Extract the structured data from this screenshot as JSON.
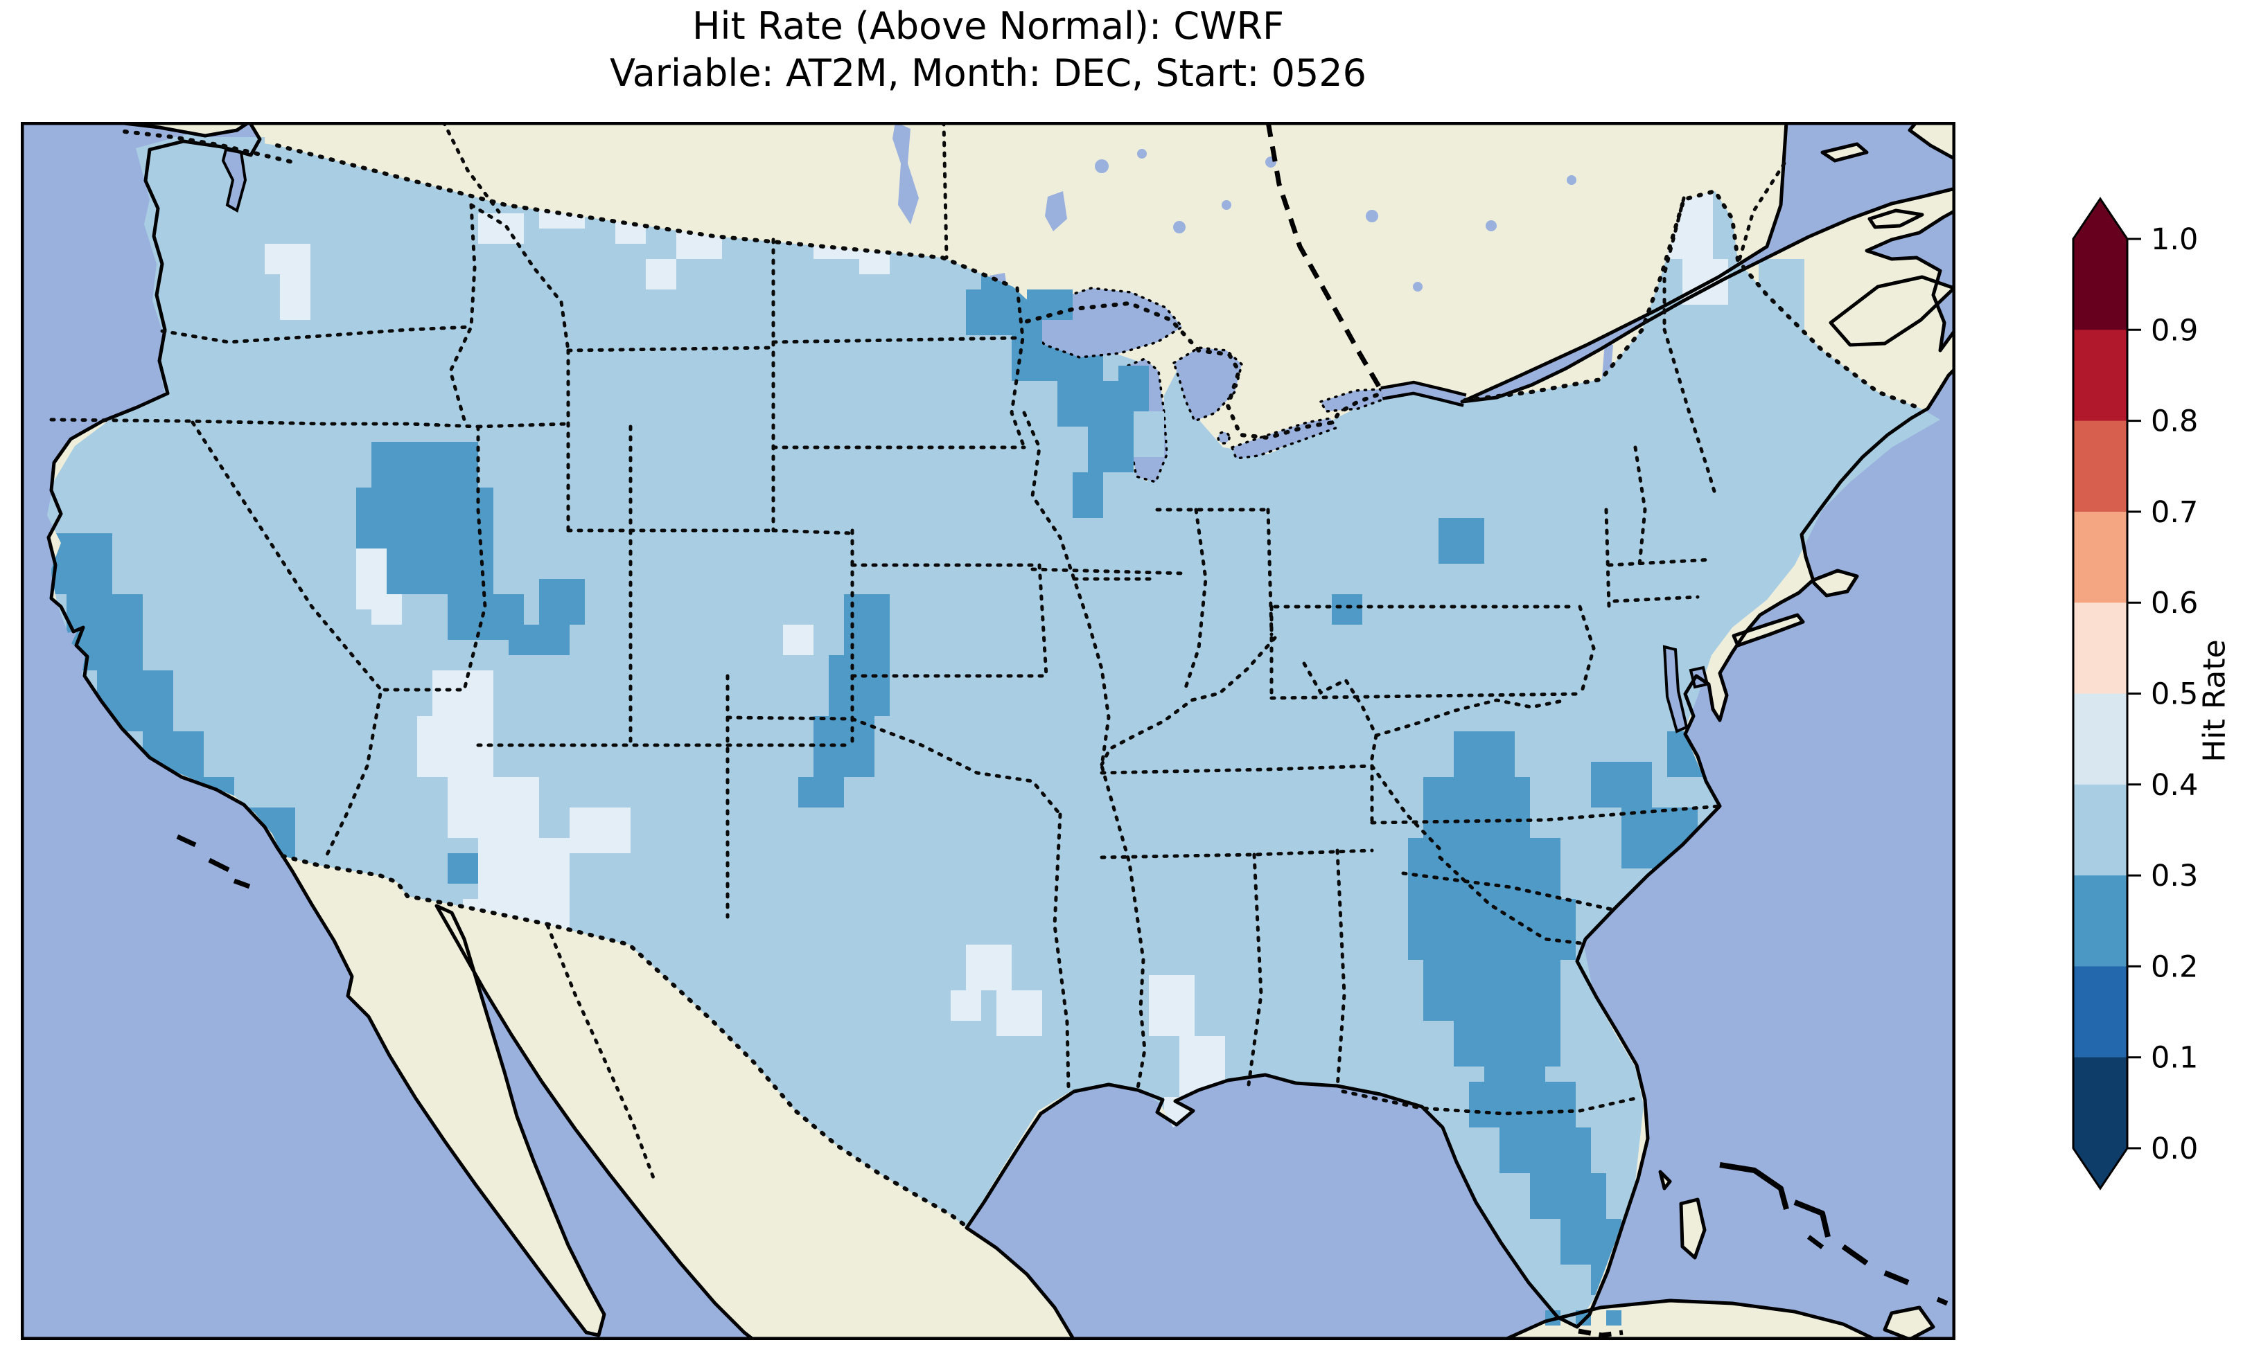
{
  "title": {
    "line1": "Hit Rate (Above Normal): CWRF",
    "line2": "Variable: AT2M, Month: DEC, Start: 0526"
  },
  "colorbar": {
    "label": "Hit Rate",
    "ticks": [
      "1.0",
      "0.9",
      "0.8",
      "0.7",
      "0.6",
      "0.5",
      "0.4",
      "0.3",
      "0.2",
      "0.1",
      "0.0"
    ],
    "segments": [
      {
        "range": "0.9-1.0",
        "color": "#67001f"
      },
      {
        "range": "0.8-0.9",
        "color": "#b2182b"
      },
      {
        "range": "0.7-0.8",
        "color": "#d6604d"
      },
      {
        "range": "0.6-0.7",
        "color": "#f4a582"
      },
      {
        "range": "0.5-0.6",
        "color": "#fbdfd0"
      },
      {
        "range": "0.4-0.5",
        "color": "#d9e7f1"
      },
      {
        "range": "0.3-0.4",
        "color": "#a9cee3"
      },
      {
        "range": "0.2-0.3",
        "color": "#4c98c5"
      },
      {
        "range": "0.1-0.2",
        "color": "#2368ac"
      },
      {
        "range": "0.0-0.1",
        "color": "#0e3d6a"
      }
    ],
    "extend_above_color": "#67001f",
    "extend_below_color": "#0e3d6a"
  },
  "map": {
    "colors": {
      "ocean": "#9ab1de",
      "land": "#efeedb",
      "lake": "#9ab1de",
      "coastline": "#000000",
      "border": "#0a0a0a",
      "frame": "#000000"
    },
    "bins": {
      "b2": {
        "range": "0.2-0.3",
        "color": "#4f9ac6"
      },
      "b3": {
        "range": "0.3-0.4",
        "color": "#a9cee3"
      },
      "b4": {
        "range": "0.4-0.5",
        "color": "#e3eef6"
      }
    },
    "base_bin": "b3",
    "cell_size": 22,
    "patches": [
      {
        "bin": "b2",
        "region": "northern-minnesota",
        "rects": [
          [
            63,
            9,
            6,
            2
          ],
          [
            62,
            11,
            8,
            3
          ],
          [
            65,
            14,
            6,
            3
          ],
          [
            68,
            17,
            4,
            3
          ],
          [
            70,
            20,
            3,
            3
          ]
        ]
      },
      {
        "bin": "b2",
        "region": "west-lake-superior",
        "overlay": true,
        "rects": [
          [
            66,
            11,
            3,
            2
          ],
          [
            65,
            13,
            2,
            2
          ]
        ]
      },
      {
        "bin": "b2",
        "region": "west-lake-michigan",
        "overlay": true,
        "rects": [
          [
            72,
            16,
            2,
            3
          ],
          [
            71,
            19,
            2,
            4
          ]
        ]
      },
      {
        "bin": "b3",
        "region": "lake-michigan-east",
        "overlay": true,
        "rects": [
          [
            73,
            19,
            2,
            3
          ]
        ]
      },
      {
        "bin": "b2",
        "region": "wisconsin-shore",
        "rects": [
          [
            69,
            23,
            2,
            3
          ]
        ]
      },
      {
        "bin": "b2",
        "region": "california-coast",
        "rects": [
          [
            2,
            27,
            4,
            4
          ],
          [
            3,
            31,
            5,
            5
          ],
          [
            5,
            36,
            5,
            4
          ],
          [
            8,
            40,
            4,
            3
          ],
          [
            11,
            43,
            3,
            2
          ]
        ]
      },
      {
        "bin": "b2",
        "region": "southern-california",
        "rects": [
          [
            14,
            45,
            4,
            2
          ],
          [
            16,
            47,
            2,
            2
          ]
        ]
      },
      {
        "bin": "b2",
        "region": "northern-nevada",
        "rects": [
          [
            23,
            21,
            7,
            3
          ],
          [
            22,
            24,
            9,
            4
          ],
          [
            24,
            28,
            7,
            3
          ],
          [
            28,
            31,
            5,
            3
          ],
          [
            32,
            33,
            4,
            2
          ],
          [
            34,
            30,
            3,
            3
          ]
        ]
      },
      {
        "bin": "b2",
        "region": "central-kansas",
        "rects": [
          [
            54,
            31,
            3,
            4
          ],
          [
            53,
            35,
            4,
            4
          ],
          [
            52,
            39,
            4,
            4
          ],
          [
            51,
            43,
            3,
            2
          ]
        ]
      },
      {
        "bin": "b2",
        "region": "west-virginia",
        "rects": [
          [
            86,
            31,
            2,
            2
          ]
        ]
      },
      {
        "bin": "b2",
        "region": "central-pennsylvania",
        "rects": [
          [
            93,
            26,
            3,
            3
          ]
        ]
      },
      {
        "bin": "b2",
        "region": "southeast-georgia-carolinas",
        "rects": [
          [
            94,
            40,
            4,
            3
          ],
          [
            92,
            43,
            7,
            4
          ],
          [
            91,
            47,
            10,
            4
          ],
          [
            91,
            51,
            11,
            4
          ],
          [
            92,
            55,
            9,
            4
          ],
          [
            94,
            59,
            7,
            3
          ],
          [
            96,
            62,
            4,
            2
          ],
          [
            103,
            42,
            4,
            3
          ],
          [
            105,
            45,
            5,
            4
          ],
          [
            107,
            49,
            4,
            4
          ],
          [
            108,
            40,
            3,
            3
          ]
        ]
      },
      {
        "bin": "b2",
        "region": "north-carolina-coast",
        "rects": [
          [
            110,
            47,
            3,
            3
          ]
        ]
      },
      {
        "bin": "b2",
        "region": "florida-peninsula",
        "rects": [
          [
            95,
            63,
            7,
            3
          ],
          [
            97,
            66,
            6,
            3
          ],
          [
            99,
            69,
            5,
            3
          ],
          [
            101,
            72,
            4,
            3
          ],
          [
            103,
            75,
            3,
            2
          ]
        ]
      },
      {
        "bin": "b2",
        "region": "louisiana-delta",
        "rects": [
          [
            73,
            65,
            3,
            3
          ],
          [
            71,
            68,
            2,
            2
          ]
        ]
      },
      {
        "bin": "b2",
        "region": "texas-gulf-coast",
        "rects": [
          [
            64,
            70,
            2,
            2
          ],
          [
            62,
            73,
            2,
            2
          ]
        ]
      },
      {
        "bin": "b2",
        "region": "florida-panhandle-coast",
        "rects": [
          [
            88,
            64,
            2,
            2
          ]
        ]
      },
      {
        "bin": "b2",
        "region": "florida-keys",
        "overlay": true,
        "rects": [
          [
            100,
            78,
            1,
            1
          ],
          [
            102,
            78,
            1,
            1
          ],
          [
            104,
            78,
            1,
            1
          ]
        ]
      },
      {
        "bin": "b2",
        "region": "puget-sound",
        "overlay": true,
        "rects": [
          [
            14,
            3,
            1,
            2
          ]
        ]
      },
      {
        "bin": "b2",
        "region": "southern-arizona",
        "rects": [
          [
            28,
            48,
            2,
            2
          ]
        ]
      },
      {
        "bin": "b3",
        "region": "strait-of-georgia",
        "overlay": true,
        "rects": [
          [
            10,
            1,
            6,
            2
          ],
          [
            12,
            3,
            3,
            2
          ]
        ]
      },
      {
        "bin": "b3",
        "region": "gulf-of-maine",
        "overlay": true,
        "rects": [
          [
            114,
            9,
            3,
            5
          ]
        ]
      },
      {
        "bin": "b4",
        "region": "interior-washington",
        "rects": [
          [
            16,
            8,
            3,
            2
          ],
          [
            17,
            10,
            2,
            3
          ]
        ]
      },
      {
        "bin": "b4",
        "region": "oregon-coast-range",
        "rects": [
          [
            22,
            28,
            2,
            4
          ],
          [
            23,
            31,
            2,
            2
          ]
        ]
      },
      {
        "bin": "b4",
        "region": "montana-idaho",
        "rects": [
          [
            30,
            6,
            3,
            2
          ],
          [
            34,
            5,
            3,
            2
          ],
          [
            39,
            6,
            2,
            2
          ],
          [
            43,
            6,
            3,
            3
          ],
          [
            41,
            9,
            2,
            2
          ]
        ]
      },
      {
        "bin": "b4",
        "region": "north-dakota",
        "rects": [
          [
            52,
            6,
            3,
            3
          ],
          [
            55,
            8,
            2,
            2
          ]
        ]
      },
      {
        "bin": "b4",
        "region": "four-corners-new-mexico",
        "rects": [
          [
            27,
            36,
            4,
            3
          ],
          [
            26,
            39,
            5,
            4
          ],
          [
            28,
            43,
            6,
            4
          ],
          [
            30,
            47,
            6,
            4
          ],
          [
            32,
            51,
            4,
            3
          ],
          [
            36,
            45,
            4,
            3
          ],
          [
            29,
            51,
            3,
            2
          ]
        ]
      },
      {
        "bin": "b4",
        "region": "nebraska",
        "rects": [
          [
            50,
            33,
            2,
            2
          ]
        ]
      },
      {
        "bin": "b4",
        "region": "arkansas",
        "rects": [
          [
            62,
            54,
            3,
            3
          ],
          [
            64,
            57,
            3,
            3
          ],
          [
            61,
            57,
            2,
            2
          ]
        ]
      },
      {
        "bin": "b4",
        "region": "mississippi-alabama",
        "rects": [
          [
            74,
            56,
            3,
            4
          ],
          [
            76,
            60,
            3,
            4
          ],
          [
            75,
            64,
            2,
            2
          ]
        ]
      },
      {
        "bin": "b4",
        "region": "northern-maine",
        "rects": [
          [
            107,
            4,
            4,
            5
          ],
          [
            109,
            9,
            3,
            3
          ]
        ]
      }
    ]
  }
}
